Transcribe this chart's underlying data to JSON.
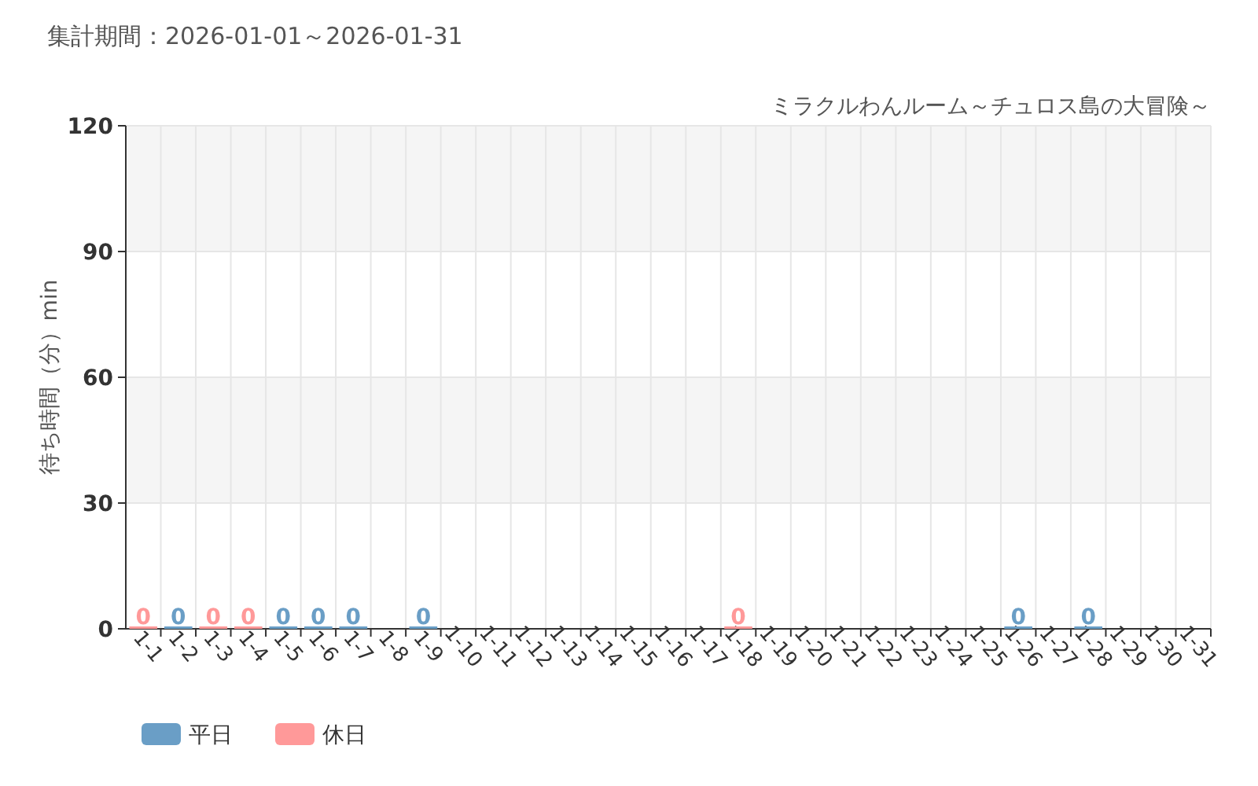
{
  "chart_data": {
    "type": "bar",
    "title": "ミラクルわんルーム～チュロス島の大冒険～",
    "subtitle": "集計期間：2026-01-01～2026-01-31",
    "ylabel": "待ち時間（分）min",
    "categories": [
      "1-1",
      "1-2",
      "1-3",
      "1-4",
      "1-5",
      "1-6",
      "1-7",
      "1-8",
      "1-9",
      "1-10",
      "1-11",
      "1-12",
      "1-13",
      "1-14",
      "1-15",
      "1-16",
      "1-17",
      "1-18",
      "1-19",
      "1-20",
      "1-21",
      "1-22",
      "1-23",
      "1-24",
      "1-25",
      "1-26",
      "1-27",
      "1-28",
      "1-29",
      "1-30",
      "1-31"
    ],
    "series": [
      {
        "name": "平日",
        "color": "#6a9ec6",
        "values": [
          null,
          0,
          null,
          null,
          0,
          0,
          0,
          null,
          0,
          null,
          null,
          null,
          null,
          null,
          null,
          null,
          null,
          null,
          null,
          null,
          null,
          null,
          null,
          null,
          null,
          0,
          null,
          0,
          null,
          null,
          null
        ]
      },
      {
        "name": "休日",
        "color": "#ff9999",
        "values": [
          0,
          null,
          0,
          0,
          null,
          null,
          null,
          null,
          null,
          null,
          null,
          null,
          null,
          null,
          null,
          null,
          null,
          0,
          null,
          null,
          null,
          null,
          null,
          null,
          null,
          null,
          null,
          null,
          null,
          null,
          null
        ]
      }
    ],
    "ylim": [
      0,
      120
    ],
    "yticks": [
      0,
      30,
      60,
      90,
      120
    ],
    "grid": true,
    "legend": "bottom left",
    "data_labels": true
  }
}
